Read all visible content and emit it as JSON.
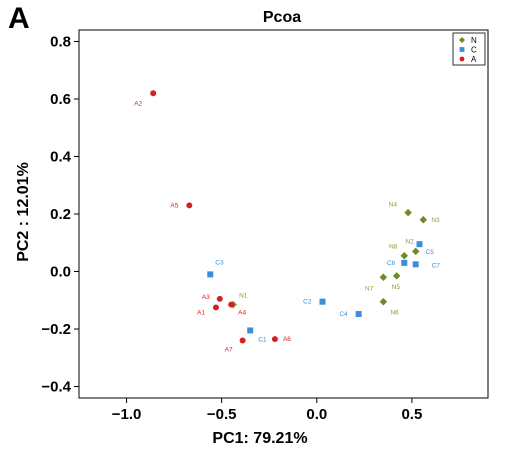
{
  "panel_letter": "A",
  "chart_data": {
    "type": "scatter",
    "title": "Pcoa",
    "xlabel": "PC1: 79.21%",
    "ylabel": "PC2 : 12.01%",
    "xlim": [
      -1.25,
      0.9
    ],
    "ylim": [
      -0.44,
      0.84
    ],
    "xticks": [
      -1.0,
      -0.5,
      0.0,
      0.5
    ],
    "xtick_labels": [
      "−1.0",
      "−0.5",
      "0.0",
      "0.5"
    ],
    "yticks": [
      -0.4,
      -0.2,
      0.0,
      0.2,
      0.4,
      0.6,
      0.8
    ],
    "ytick_labels": [
      "−0.4",
      "−0.2",
      "0.0",
      "0.2",
      "0.4",
      "0.6",
      "0.8"
    ],
    "grid": false,
    "legend_position": "top-right",
    "series": [
      {
        "name": "N",
        "marker": "diamond",
        "color": "#6b8e23",
        "label_color": "#8a9a3a",
        "points": [
          {
            "label": "N1",
            "x": -0.44,
            "y": -0.115
          },
          {
            "label": "N2",
            "x": 0.52,
            "y": 0.07
          },
          {
            "label": "N3",
            "x": 0.56,
            "y": 0.18
          },
          {
            "label": "N4",
            "x": 0.48,
            "y": 0.205
          },
          {
            "label": "N5",
            "x": 0.42,
            "y": -0.015
          },
          {
            "label": "N6",
            "x": 0.35,
            "y": -0.105
          },
          {
            "label": "N7",
            "x": 0.35,
            "y": -0.02
          },
          {
            "label": "N8",
            "x": 0.46,
            "y": 0.055
          }
        ]
      },
      {
        "name": "C",
        "marker": "square",
        "color": "#3a8fd6",
        "label_color": "#3a8fd6",
        "points": [
          {
            "label": "C1",
            "x": -0.35,
            "y": -0.205
          },
          {
            "label": "C2",
            "x": 0.03,
            "y": -0.105
          },
          {
            "label": "C3",
            "x": -0.56,
            "y": -0.01
          },
          {
            "label": "C4",
            "x": 0.22,
            "y": -0.148
          },
          {
            "label": "C5",
            "x": 0.54,
            "y": 0.095
          },
          {
            "label": "C6",
            "x": 0.46,
            "y": 0.03
          },
          {
            "label": "C7",
            "x": 0.52,
            "y": 0.025
          }
        ]
      },
      {
        "name": "A",
        "marker": "circle",
        "color": "#d62020",
        "label_color": "#d62020",
        "points": [
          {
            "label": "A1",
            "x": -0.53,
            "y": -0.125
          },
          {
            "label": "A2",
            "x": -0.86,
            "y": 0.62
          },
          {
            "label": "A3",
            "x": -0.51,
            "y": -0.095
          },
          {
            "label": "A4",
            "x": -0.45,
            "y": -0.115
          },
          {
            "label": "A5",
            "x": -0.67,
            "y": 0.23
          },
          {
            "label": "A6",
            "x": -0.22,
            "y": -0.235
          },
          {
            "label": "A7",
            "x": -0.39,
            "y": -0.24
          }
        ]
      }
    ]
  }
}
